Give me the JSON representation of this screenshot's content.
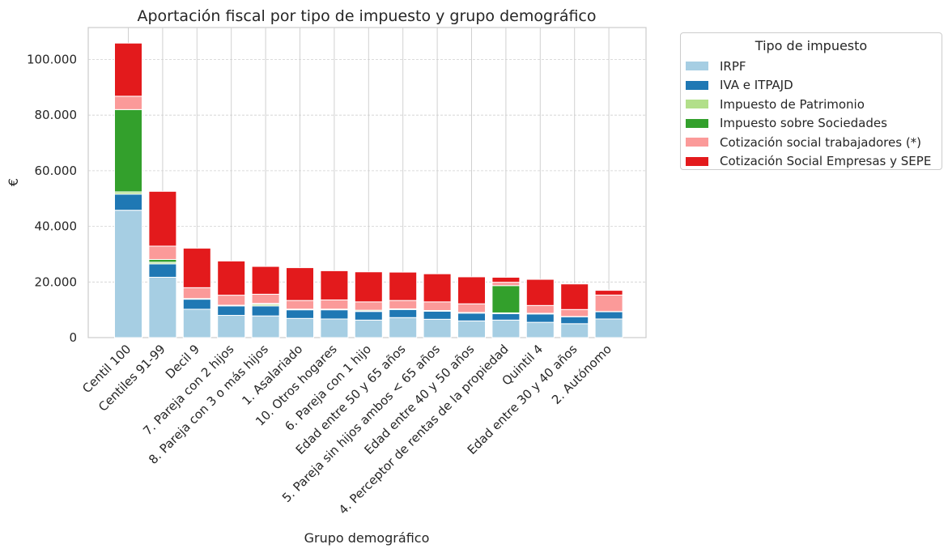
{
  "chart_data": {
    "type": "bar",
    "stacked": true,
    "title": "Aportación fiscal por tipo de impuesto y grupo demográfico",
    "xlabel": "Grupo demográfico",
    "ylabel": "€",
    "ylim": [
      0,
      111500
    ],
    "yticks": [
      0,
      20000,
      40000,
      60000,
      80000,
      100000
    ],
    "ytick_labels": [
      "0",
      "20.000",
      "40.000",
      "60.000",
      "80.000",
      "100.000"
    ],
    "grid": true,
    "legend": {
      "title": "Tipo de impuesto",
      "placement": "outside-right"
    },
    "categories": [
      "Centil 100",
      "Centiles 91-99",
      "Decil 9",
      "7. Pareja con 2 hijos",
      "8. Pareja con 3 o más hijos",
      "1. Asalariado",
      "10. Otros hogares",
      "6. Pareja con 1 hijo",
      "Edad entre 50 y 65 años",
      "5. Pareja sin hijos ambos < 65 años",
      "Edad entre 40 y 50 años",
      "4. Perceptor de rentas de la propiedad",
      "Quintil 4",
      "Edad entre 30 y 40 años",
      "2. Autónomo"
    ],
    "series": [
      {
        "name": "IRPF",
        "color": "#a6cee3",
        "values": [
          45800,
          21700,
          10200,
          8000,
          7800,
          6900,
          6700,
          6300,
          7200,
          6600,
          6000,
          6300,
          5500,
          5000,
          6700
        ]
      },
      {
        "name": "IVA e ITPAJD",
        "color": "#1f78b4",
        "values": [
          5800,
          4800,
          3600,
          3400,
          3600,
          3100,
          3300,
          3100,
          2900,
          2900,
          2800,
          2300,
          3000,
          2500,
          2600
        ]
      },
      {
        "name": "Impuesto de Patrimonio",
        "color": "#b2df8a",
        "values": [
          800,
          600,
          100,
          100,
          600,
          100,
          100,
          100,
          100,
          100,
          100,
          300,
          100,
          50,
          50
        ]
      },
      {
        "name": "Impuesto sobre Sociedades",
        "color": "#33a02c",
        "values": [
          29600,
          1000,
          150,
          150,
          300,
          150,
          150,
          350,
          150,
          150,
          150,
          9800,
          150,
          50,
          50
        ]
      },
      {
        "name": "Cotización social trabajadores (*)",
        "color": "#fb9a99",
        "values": [
          4800,
          4800,
          3900,
          3600,
          3300,
          3100,
          3300,
          3000,
          3000,
          3100,
          3100,
          1200,
          2800,
          2500,
          5900
        ]
      },
      {
        "name": "Cotización Social Empresas y SEPE",
        "color": "#e31a1c",
        "values": [
          19100,
          19700,
          14200,
          12300,
          10000,
          11800,
          10500,
          10800,
          10200,
          10100,
          9700,
          1800,
          9400,
          9200,
          1700
        ]
      }
    ]
  }
}
